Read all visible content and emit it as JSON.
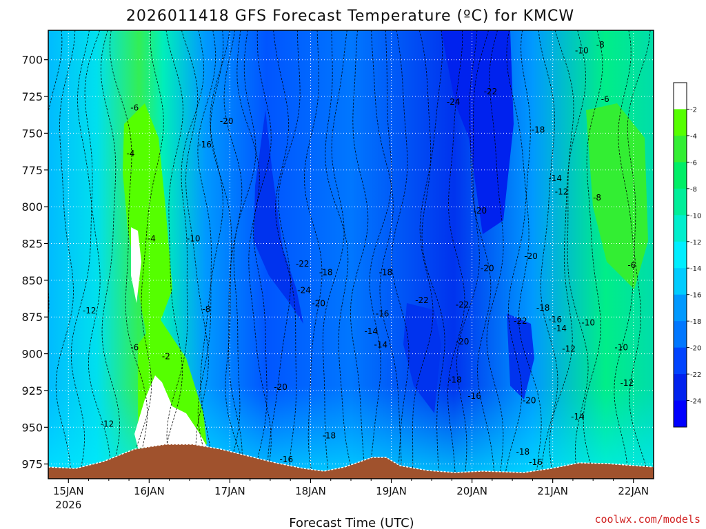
{
  "chart_data": {
    "type": "heatmap",
    "title": "2026011418 GFS Forecast Temperature (ºC) for KMCW",
    "xlabel": "Forecast Time (UTC)",
    "ylabel": "",
    "x_ticks": [
      {
        "label": "15JAN",
        "label2": "2026",
        "day": 15
      },
      {
        "label": "16JAN",
        "label2": "",
        "day": 16
      },
      {
        "label": "17JAN",
        "label2": "",
        "day": 17
      },
      {
        "label": "18JAN",
        "label2": "",
        "day": 18
      },
      {
        "label": "19JAN",
        "label2": "",
        "day": 19
      },
      {
        "label": "20JAN",
        "label2": "",
        "day": 20
      },
      {
        "label": "21JAN",
        "label2": "",
        "day": 21
      },
      {
        "label": "22JAN",
        "label2": "",
        "day": 22
      }
    ],
    "xlim": [
      "2026-01-14T18:00Z",
      "2026-01-22T06:00Z"
    ],
    "y_ticks": [
      700,
      725,
      750,
      775,
      800,
      825,
      850,
      875,
      900,
      925,
      950,
      975
    ],
    "y_tick_labels": [
      "700",
      "725",
      "750",
      "775",
      "800",
      "825",
      "850",
      "875",
      "900",
      "925",
      "950",
      "975"
    ],
    "ylim": [
      680,
      985
    ],
    "y_axis": "pressure (hPa), increasing downward",
    "colorbar": {
      "levels": [
        -2,
        -4,
        -6,
        -8,
        -10,
        -12,
        -14,
        -16,
        -18,
        -20,
        -22,
        -24
      ],
      "labels": [
        "-2",
        "-4",
        "-6",
        "-8",
        "-10",
        "-12",
        "-14",
        "-16",
        "-18",
        "-20",
        "-22",
        "-24"
      ],
      "colors": [
        "#ffffff",
        "#55ff00",
        "#33ee33",
        "#00ee66",
        "#00ee99",
        "#00eecc",
        "#00eeff",
        "#00ccff",
        "#0099ff",
        "#0077ff",
        "#0044ff",
        "#0022ee",
        "#0000ff"
      ]
    },
    "grid": true,
    "contour_labels": [
      {
        "text": "-6",
        "day": 15.82,
        "p": 733
      },
      {
        "text": "-4",
        "day": 15.77,
        "p": 764
      },
      {
        "text": "-4",
        "day": 16.03,
        "p": 822
      },
      {
        "text": "-10",
        "day": 16.55,
        "p": 822
      },
      {
        "text": "-8",
        "day": 16.71,
        "p": 870
      },
      {
        "text": "-6",
        "day": 15.82,
        "p": 896
      },
      {
        "text": "-2",
        "day": 16.21,
        "p": 902
      },
      {
        "text": "-12",
        "day": 15.26,
        "p": 871
      },
      {
        "text": "-12",
        "day": 15.48,
        "p": 948
      },
      {
        "text": "-16",
        "day": 16.69,
        "p": 758
      },
      {
        "text": "-20",
        "day": 16.96,
        "p": 742
      },
      {
        "text": "-22",
        "day": 17.9,
        "p": 839
      },
      {
        "text": "-24",
        "day": 17.92,
        "p": 857
      },
      {
        "text": "-18",
        "day": 18.19,
        "p": 845
      },
      {
        "text": "-20",
        "day": 18.1,
        "p": 866
      },
      {
        "text": "-20",
        "day": 17.63,
        "p": 923
      },
      {
        "text": "-18",
        "day": 18.23,
        "p": 956
      },
      {
        "text": "-16",
        "day": 17.7,
        "p": 972
      },
      {
        "text": "-18",
        "day": 18.93,
        "p": 845
      },
      {
        "text": "-16",
        "day": 18.89,
        "p": 873
      },
      {
        "text": "-14",
        "day": 18.75,
        "p": 885
      },
      {
        "text": "-14",
        "day": 18.87,
        "p": 894
      },
      {
        "text": "-22",
        "day": 19.38,
        "p": 864
      },
      {
        "text": "-24",
        "day": 19.77,
        "p": 729
      },
      {
        "text": "-22",
        "day": 20.23,
        "p": 722
      },
      {
        "text": "-20",
        "day": 20.1,
        "p": 803
      },
      {
        "text": "-20",
        "day": 20.19,
        "p": 842
      },
      {
        "text": "-22",
        "day": 19.88,
        "p": 867
      },
      {
        "text": "-20",
        "day": 19.88,
        "p": 892
      },
      {
        "text": "-18",
        "day": 19.79,
        "p": 918
      },
      {
        "text": "-16",
        "day": 20.03,
        "p": 929
      },
      {
        "text": "-20",
        "day": 20.73,
        "p": 834
      },
      {
        "text": "-18",
        "day": 20.82,
        "p": 748
      },
      {
        "text": "-18",
        "day": 20.88,
        "p": 869
      },
      {
        "text": "-22",
        "day": 20.6,
        "p": 878
      },
      {
        "text": "-16",
        "day": 21.03,
        "p": 877
      },
      {
        "text": "-14",
        "day": 21.09,
        "p": 883
      },
      {
        "text": "-12",
        "day": 21.2,
        "p": 897
      },
      {
        "text": "-20",
        "day": 20.71,
        "p": 932
      },
      {
        "text": "-18",
        "day": 20.63,
        "p": 967
      },
      {
        "text": "-16",
        "day": 20.79,
        "p": 974
      },
      {
        "text": "-14",
        "day": 21.03,
        "p": 781
      },
      {
        "text": "-12",
        "day": 21.11,
        "p": 790
      },
      {
        "text": "-10",
        "day": 21.36,
        "p": 694
      },
      {
        "text": "-8",
        "day": 21.59,
        "p": 690
      },
      {
        "text": "-6",
        "day": 21.65,
        "p": 727
      },
      {
        "text": "-8",
        "day": 21.55,
        "p": 794
      },
      {
        "text": "-6",
        "day": 21.98,
        "p": 840
      },
      {
        "text": "-10",
        "day": 21.44,
        "p": 879
      },
      {
        "text": "-10",
        "day": 21.85,
        "p": 896
      },
      {
        "text": "-12",
        "day": 21.92,
        "p": 920
      },
      {
        "text": "-14",
        "day": 21.31,
        "p": 943
      }
    ]
  },
  "credit": "coolwx.com/models"
}
